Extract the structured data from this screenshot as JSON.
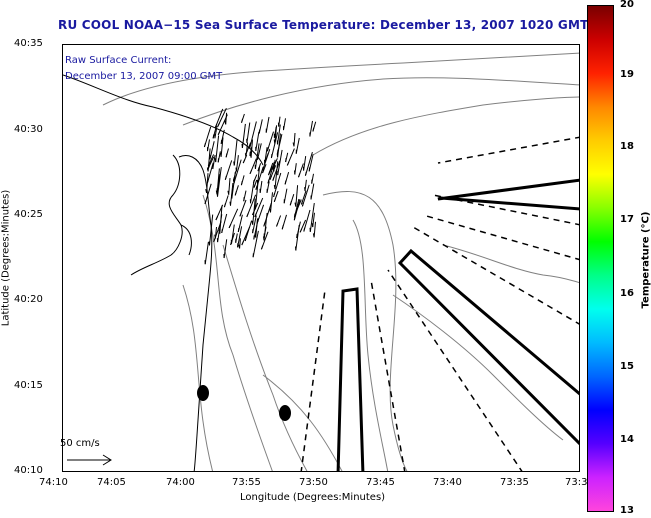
{
  "title": "RU COOL  NOAA−15  Sea Surface Temperature:  December 13, 2007 1020 GMT",
  "current_label": {
    "line1": "Raw Surface Current:",
    "line2": "December 13, 2007 09:00 GMT"
  },
  "y_axis": {
    "title": "Latitude (Degrees:Minutes)",
    "ticks": [
      "40:35",
      "40:30",
      "40:25",
      "40:20",
      "40:15",
      "40:10"
    ]
  },
  "x_axis": {
    "title": "Longitude (Degrees:Minutes)",
    "ticks": [
      "74:10",
      "74:05",
      "74:00",
      "73:55",
      "73:50",
      "73:45",
      "73:40",
      "73:35",
      "73:3"
    ]
  },
  "colorbar": {
    "title": "Temperature (°C)",
    "ticks": [
      "20",
      "19",
      "18",
      "17",
      "16",
      "15",
      "14",
      "13"
    ],
    "range": [
      13,
      20
    ],
    "colors": [
      "#ff44dd",
      "#cc22ff",
      "#5500ff",
      "#0000ff",
      "#0066ff",
      "#00bbff",
      "#00ffee",
      "#00ff88",
      "#00ff00",
      "#88ff00",
      "#ffff00",
      "#ffcc00",
      "#ff8800",
      "#ff2200",
      "#cc0000",
      "#7a0000"
    ]
  },
  "scale_bar": {
    "label": "50 cm/s"
  },
  "features": {
    "coastline_color": "#000000",
    "bathymetry_color": "#808080",
    "current_vector_color": "#000000",
    "markers": 2,
    "dashed_channels": 5,
    "outlined_zones": 3
  }
}
